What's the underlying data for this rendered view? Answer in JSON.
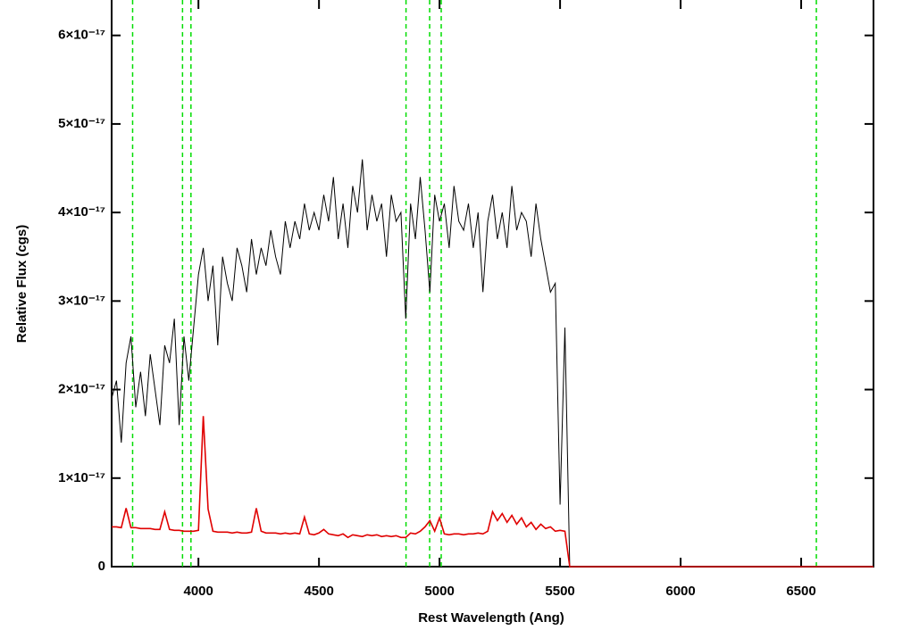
{
  "chart_data": {
    "type": "line",
    "xlabel": "Rest Wavelength (Ang)",
    "ylabel": "Relative Flux (cgs)",
    "x": [
      3640,
      3660,
      3680,
      3700,
      3720,
      3740,
      3760,
      3780,
      3800,
      3820,
      3840,
      3860,
      3880,
      3900,
      3920,
      3940,
      3960,
      3980,
      4000,
      4020,
      4040,
      4060,
      4080,
      4100,
      4120,
      4140,
      4160,
      4180,
      4200,
      4220,
      4240,
      4260,
      4280,
      4300,
      4320,
      4340,
      4360,
      4380,
      4400,
      4420,
      4440,
      4460,
      4480,
      4500,
      4520,
      4540,
      4560,
      4580,
      4600,
      4620,
      4640,
      4660,
      4680,
      4700,
      4720,
      4740,
      4760,
      4780,
      4800,
      4820,
      4840,
      4860,
      4880,
      4900,
      4920,
      4940,
      4960,
      4980,
      5000,
      5020,
      5040,
      5060,
      5080,
      5100,
      5120,
      5140,
      5160,
      5180,
      5200,
      5220,
      5240,
      5260,
      5280,
      5300,
      5320,
      5340,
      5360,
      5380,
      5400,
      5420,
      5440,
      5460,
      5480,
      5500,
      5520,
      5540,
      6800
    ],
    "series": [
      {
        "color": "#000000",
        "values": [
          1.9e-17,
          2.1e-17,
          1.4e-17,
          2.3e-17,
          2.6e-17,
          1.8e-17,
          2.2e-17,
          1.7e-17,
          2.4e-17,
          2e-17,
          1.6e-17,
          2.5e-17,
          2.3e-17,
          2.8e-17,
          1.6e-17,
          2.6e-17,
          2.1e-17,
          2.7e-17,
          3.3e-17,
          3.6e-17,
          3e-17,
          3.4e-17,
          2.5e-17,
          3.5e-17,
          3.2e-17,
          3e-17,
          3.6e-17,
          3.4e-17,
          3.1e-17,
          3.7e-17,
          3.3e-17,
          3.6e-17,
          3.4e-17,
          3.8e-17,
          3.5e-17,
          3.3e-17,
          3.9e-17,
          3.6e-17,
          3.9e-17,
          3.7e-17,
          4.1e-17,
          3.8e-17,
          4e-17,
          3.8e-17,
          4.2e-17,
          3.9e-17,
          4.4e-17,
          3.7e-17,
          4.1e-17,
          3.6e-17,
          4.3e-17,
          4e-17,
          4.6e-17,
          3.8e-17,
          4.2e-17,
          3.9e-17,
          4.1e-17,
          3.5e-17,
          4.2e-17,
          3.9e-17,
          4e-17,
          2.8e-17,
          4.1e-17,
          3.7e-17,
          4.4e-17,
          3.8e-17,
          3.1e-17,
          4.2e-17,
          3.9e-17,
          4.1e-17,
          3.6e-17,
          4.3e-17,
          3.9e-17,
          3.8e-17,
          4.1e-17,
          3.6e-17,
          4e-17,
          3.1e-17,
          3.9e-17,
          4.2e-17,
          3.7e-17,
          4e-17,
          3.6e-17,
          4.3e-17,
          3.8e-17,
          4e-17,
          3.9e-17,
          3.5e-17,
          4.1e-17,
          3.7e-17,
          3.4e-17,
          3.1e-17,
          3.2e-17,
          7e-18,
          2.7e-17,
          0,
          null
        ]
      },
      {
        "color": "#e00000",
        "values": [
          4.5e-18,
          4.5e-18,
          4.4e-18,
          6.6e-18,
          4.4e-18,
          4.4e-18,
          4.3e-18,
          4.3e-18,
          4.3e-18,
          4.2e-18,
          4.2e-18,
          6.2e-18,
          4.2e-18,
          4.1e-18,
          4.1e-18,
          4e-18,
          4e-18,
          4e-18,
          4.1e-18,
          1.7e-17,
          6.5e-18,
          4e-18,
          3.9e-18,
          3.9e-18,
          3.9e-18,
          3.8e-18,
          3.9e-18,
          3.8e-18,
          3.8e-18,
          3.9e-18,
          6.6e-18,
          4e-18,
          3.8e-18,
          3.8e-18,
          3.8e-18,
          3.7e-18,
          3.8e-18,
          3.7e-18,
          3.8e-18,
          3.7e-18,
          5.6e-18,
          3.7e-18,
          3.6e-18,
          3.8e-18,
          4.2e-18,
          3.7e-18,
          3.6e-18,
          3.5e-18,
          3.7e-18,
          3.3e-18,
          3.6e-18,
          3.5e-18,
          3.4e-18,
          3.6e-18,
          3.5e-18,
          3.6e-18,
          3.4e-18,
          3.5e-18,
          3.4e-18,
          3.5e-18,
          3.3e-18,
          3.3e-18,
          3.8e-18,
          3.7e-18,
          4e-18,
          4.5e-18,
          5.2e-18,
          4e-18,
          5.5e-18,
          3.7e-18,
          3.6e-18,
          3.7e-18,
          3.7e-18,
          3.6e-18,
          3.7e-18,
          3.7e-18,
          3.8e-18,
          3.7e-18,
          4e-18,
          6.2e-18,
          5.2e-18,
          6e-18,
          5e-18,
          5.8e-18,
          4.8e-18,
          5.5e-18,
          4.5e-18,
          5e-18,
          4.2e-18,
          4.8e-18,
          4.3e-18,
          4.5e-18,
          4e-18,
          4.1e-18,
          4e-18,
          0,
          0
        ]
      }
    ],
    "vlines": [
      3727,
      3934,
      3969,
      4861,
      4959,
      5007,
      6563
    ],
    "vline_color": "#00dd00",
    "xlim": [
      3640,
      6800
    ],
    "ylim": [
      0,
      6.4e-17
    ],
    "xticks": [
      4000,
      4500,
      5000,
      5500,
      6000,
      6500
    ],
    "yticks": [
      0,
      {
        "value": 1e-17,
        "label": "1×10⁻¹⁷"
      },
      {
        "value": 2e-17,
        "label": "2×10⁻¹⁷"
      },
      {
        "value": 3e-17,
        "label": "3×10⁻¹⁷"
      },
      {
        "value": 4e-17,
        "label": "4×10⁻¹⁷"
      },
      {
        "value": 5e-17,
        "label": "5×10⁻¹⁷"
      },
      {
        "value": 6e-17,
        "label": "6×10⁻¹⁷"
      }
    ]
  }
}
